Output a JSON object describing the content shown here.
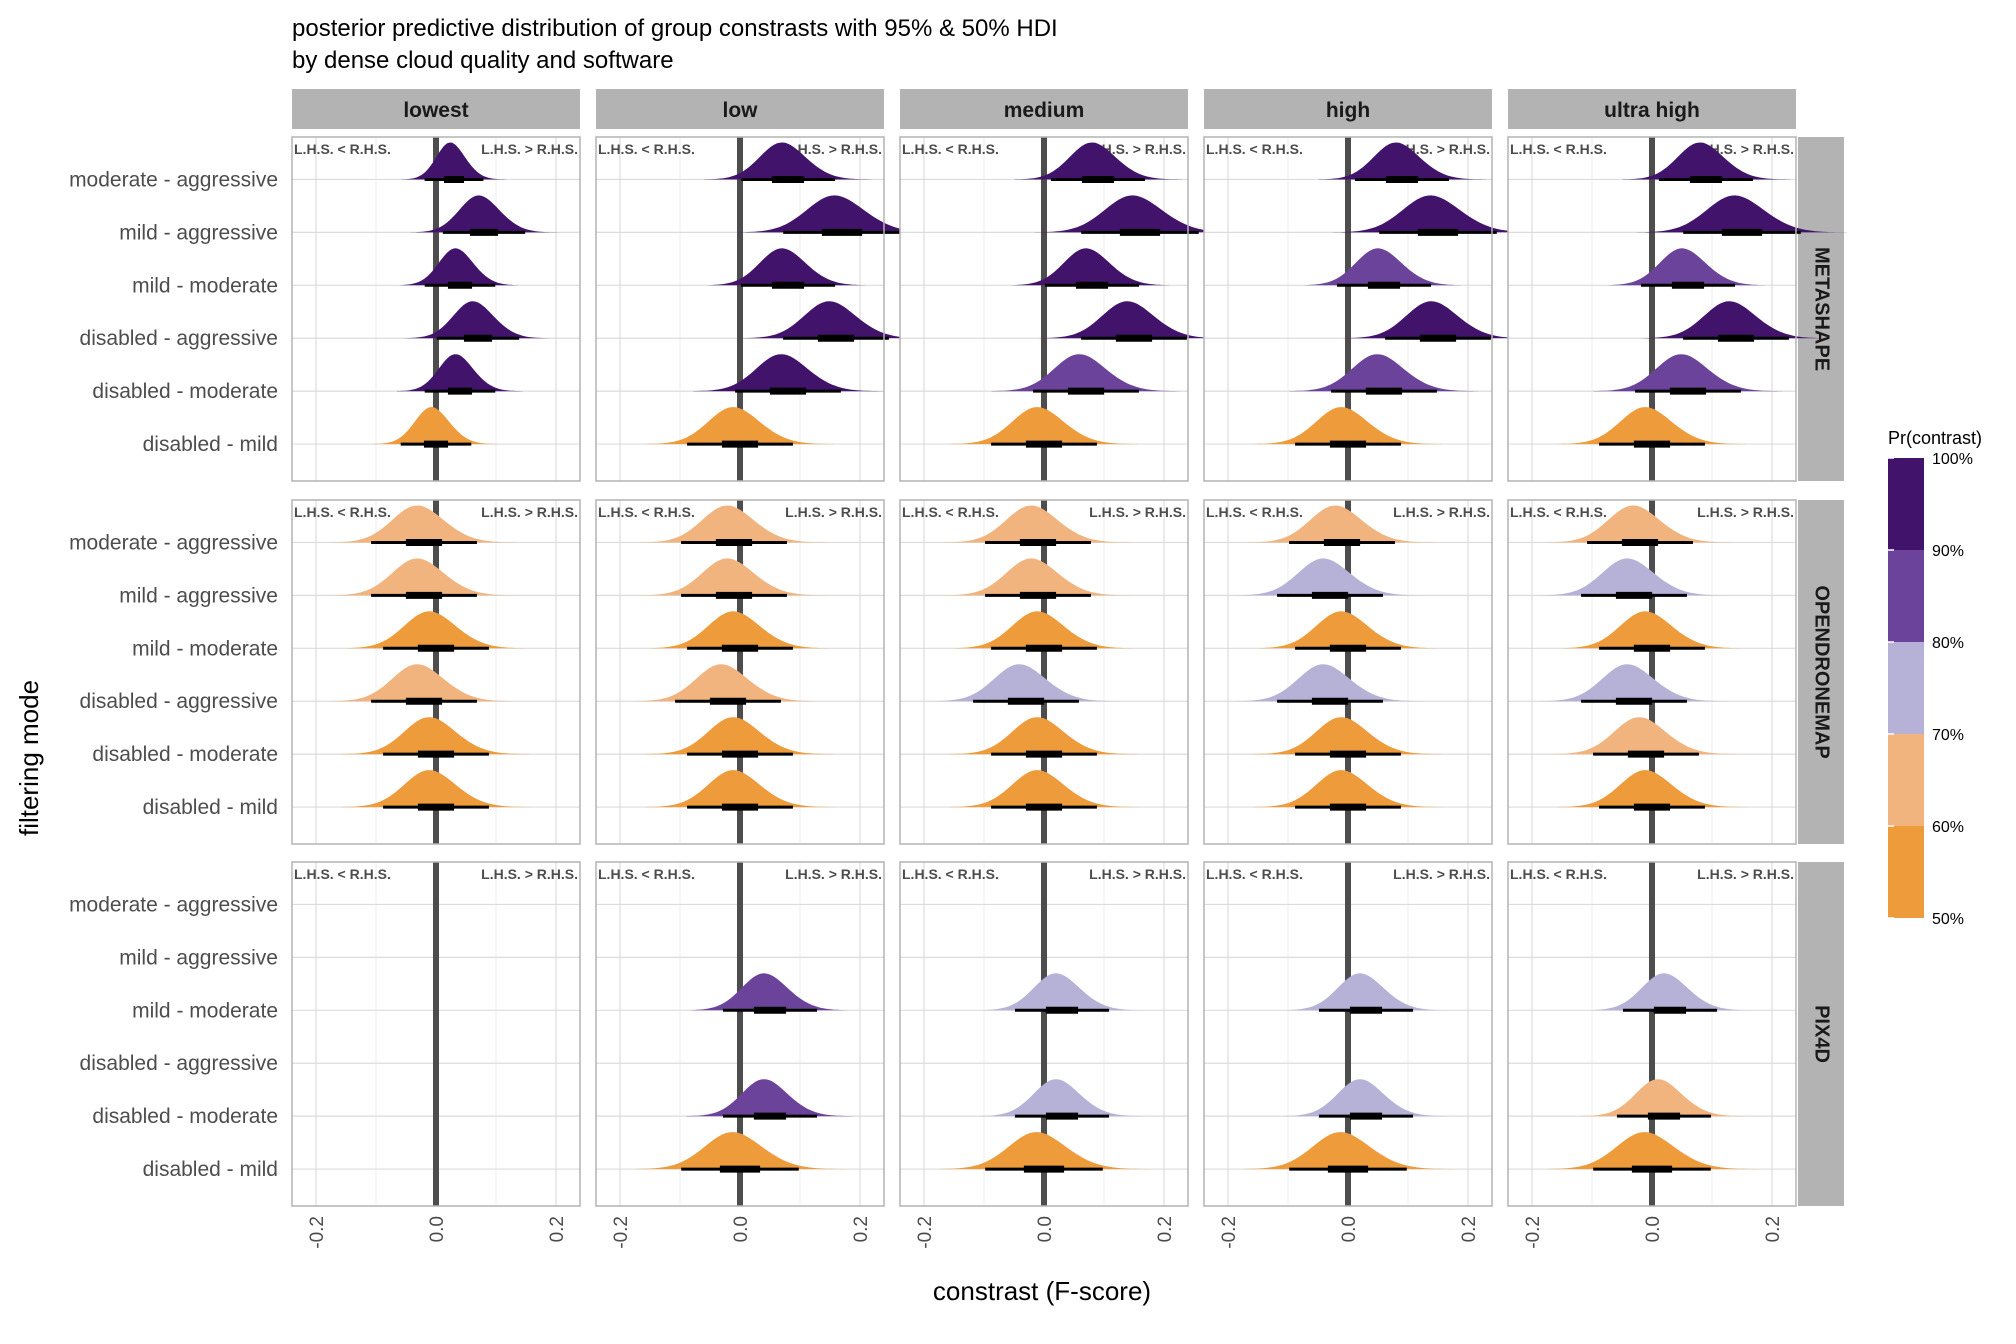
{
  "title_lines": [
    "posterior predictive distribution of group constrasts with 95% & 50% HDI",
    "by dense cloud quality and software"
  ],
  "xlabel": "constrast (F-score)",
  "ylabel": "filtering mode",
  "annotations": {
    "left": "L.H.S. < R.H.S.",
    "right": "L.H.S. > R.H.S."
  },
  "legend": {
    "title": "Pr(contrast)",
    "bins": [
      "50%",
      "60%",
      "70%",
      "80%",
      "90%",
      "100%"
    ],
    "colors": [
      "#ee9b3c",
      "#f2b47f",
      "#b6b1d7",
      "#6c439b",
      "#42136a"
    ]
  },
  "chart_data": {
    "type": "faceted ridgeline",
    "columns": [
      "lowest",
      "low",
      "medium",
      "high",
      "ultra high"
    ],
    "rows": [
      "METASHAPE",
      "OPENDRONEMAP",
      "PIX4D"
    ],
    "categories": [
      "moderate - aggressive",
      "mild - aggressive",
      "mild - moderate",
      "disabled - aggressive",
      "disabled - moderate",
      "disabled - mild"
    ],
    "x_ticks": [
      "-0.2",
      "0.0",
      "0.2"
    ],
    "xlim": [
      -0.24,
      0.24
    ],
    "reference_line": 0,
    "probability_bins": [
      0.5,
      0.6,
      0.7,
      0.8,
      0.9,
      1.0
    ],
    "cells": [
      {
        "row": "METASHAPE",
        "col": "lowest",
        "dists": [
          {
            "mean": 0.03,
            "sd": 0.025,
            "pr": 5
          },
          {
            "mean": 0.08,
            "sd": 0.035,
            "pr": 5
          },
          {
            "mean": 0.04,
            "sd": 0.03,
            "pr": 5
          },
          {
            "mean": 0.07,
            "sd": 0.035,
            "pr": 5
          },
          {
            "mean": 0.04,
            "sd": 0.03,
            "pr": 5
          },
          {
            "mean": 0.0,
            "sd": 0.03,
            "pr": 1
          }
        ]
      },
      {
        "row": "METASHAPE",
        "col": "low",
        "dists": [
          {
            "mean": 0.08,
            "sd": 0.04,
            "pr": 5
          },
          {
            "mean": 0.17,
            "sd": 0.05,
            "pr": 5
          },
          {
            "mean": 0.08,
            "sd": 0.04,
            "pr": 5
          },
          {
            "mean": 0.16,
            "sd": 0.045,
            "pr": 5
          },
          {
            "mean": 0.08,
            "sd": 0.045,
            "pr": 5
          },
          {
            "mean": 0.0,
            "sd": 0.045,
            "pr": 1
          }
        ]
      },
      {
        "row": "METASHAPE",
        "col": "medium",
        "dists": [
          {
            "mean": 0.09,
            "sd": 0.04,
            "pr": 5
          },
          {
            "mean": 0.16,
            "sd": 0.05,
            "pr": 5
          },
          {
            "mean": 0.08,
            "sd": 0.04,
            "pr": 5
          },
          {
            "mean": 0.15,
            "sd": 0.045,
            "pr": 5
          },
          {
            "mean": 0.07,
            "sd": 0.045,
            "pr": 4
          },
          {
            "mean": 0.0,
            "sd": 0.045,
            "pr": 1
          }
        ]
      },
      {
        "row": "METASHAPE",
        "col": "high",
        "dists": [
          {
            "mean": 0.09,
            "sd": 0.04,
            "pr": 5
          },
          {
            "mean": 0.15,
            "sd": 0.05,
            "pr": 5
          },
          {
            "mean": 0.06,
            "sd": 0.04,
            "pr": 4
          },
          {
            "mean": 0.15,
            "sd": 0.045,
            "pr": 5
          },
          {
            "mean": 0.06,
            "sd": 0.045,
            "pr": 4
          },
          {
            "mean": 0.0,
            "sd": 0.045,
            "pr": 1
          }
        ]
      },
      {
        "row": "METASHAPE",
        "col": "ultra high",
        "dists": [
          {
            "mean": 0.09,
            "sd": 0.04,
            "pr": 5
          },
          {
            "mean": 0.15,
            "sd": 0.05,
            "pr": 5
          },
          {
            "mean": 0.06,
            "sd": 0.04,
            "pr": 4
          },
          {
            "mean": 0.14,
            "sd": 0.045,
            "pr": 5
          },
          {
            "mean": 0.06,
            "sd": 0.045,
            "pr": 4
          },
          {
            "mean": 0.0,
            "sd": 0.045,
            "pr": 1
          }
        ]
      },
      {
        "row": "OPENDRONEMAP",
        "col": "lowest",
        "dists": [
          {
            "mean": -0.02,
            "sd": 0.045,
            "pr": 2
          },
          {
            "mean": -0.02,
            "sd": 0.045,
            "pr": 2
          },
          {
            "mean": 0.0,
            "sd": 0.045,
            "pr": 1
          },
          {
            "mean": -0.02,
            "sd": 0.045,
            "pr": 2
          },
          {
            "mean": 0.0,
            "sd": 0.045,
            "pr": 1
          },
          {
            "mean": 0.0,
            "sd": 0.045,
            "pr": 1
          }
        ]
      },
      {
        "row": "OPENDRONEMAP",
        "col": "low",
        "dists": [
          {
            "mean": -0.01,
            "sd": 0.045,
            "pr": 2
          },
          {
            "mean": -0.01,
            "sd": 0.045,
            "pr": 2
          },
          {
            "mean": 0.0,
            "sd": 0.045,
            "pr": 1
          },
          {
            "mean": -0.02,
            "sd": 0.045,
            "pr": 2
          },
          {
            "mean": 0.0,
            "sd": 0.045,
            "pr": 1
          },
          {
            "mean": 0.0,
            "sd": 0.045,
            "pr": 1
          }
        ]
      },
      {
        "row": "OPENDRONEMAP",
        "col": "medium",
        "dists": [
          {
            "mean": -0.01,
            "sd": 0.045,
            "pr": 2
          },
          {
            "mean": -0.01,
            "sd": 0.045,
            "pr": 2
          },
          {
            "mean": 0.0,
            "sd": 0.045,
            "pr": 1
          },
          {
            "mean": -0.03,
            "sd": 0.045,
            "pr": 3
          },
          {
            "mean": 0.0,
            "sd": 0.045,
            "pr": 1
          },
          {
            "mean": 0.0,
            "sd": 0.045,
            "pr": 1
          }
        ]
      },
      {
        "row": "OPENDRONEMAP",
        "col": "high",
        "dists": [
          {
            "mean": -0.01,
            "sd": 0.045,
            "pr": 2
          },
          {
            "mean": -0.03,
            "sd": 0.045,
            "pr": 3
          },
          {
            "mean": 0.0,
            "sd": 0.045,
            "pr": 1
          },
          {
            "mean": -0.03,
            "sd": 0.045,
            "pr": 3
          },
          {
            "mean": 0.0,
            "sd": 0.045,
            "pr": 1
          },
          {
            "mean": 0.0,
            "sd": 0.045,
            "pr": 1
          }
        ]
      },
      {
        "row": "OPENDRONEMAP",
        "col": "ultra high",
        "dists": [
          {
            "mean": -0.02,
            "sd": 0.045,
            "pr": 2
          },
          {
            "mean": -0.03,
            "sd": 0.045,
            "pr": 3
          },
          {
            "mean": 0.0,
            "sd": 0.045,
            "pr": 1
          },
          {
            "mean": -0.03,
            "sd": 0.045,
            "pr": 3
          },
          {
            "mean": -0.01,
            "sd": 0.045,
            "pr": 2
          },
          {
            "mean": 0.0,
            "sd": 0.045,
            "pr": 1
          }
        ]
      },
      {
        "row": "PIX4D",
        "col": "lowest",
        "dists": [
          null,
          null,
          null,
          null,
          null,
          null
        ]
      },
      {
        "row": "PIX4D",
        "col": "low",
        "dists": [
          null,
          null,
          {
            "mean": 0.05,
            "sd": 0.04,
            "pr": 4
          },
          null,
          {
            "mean": 0.05,
            "sd": 0.04,
            "pr": 4
          },
          {
            "mean": 0.0,
            "sd": 0.05,
            "pr": 1
          }
        ]
      },
      {
        "row": "PIX4D",
        "col": "medium",
        "dists": [
          null,
          null,
          {
            "mean": 0.03,
            "sd": 0.04,
            "pr": 3
          },
          null,
          {
            "mean": 0.03,
            "sd": 0.04,
            "pr": 3
          },
          {
            "mean": 0.0,
            "sd": 0.05,
            "pr": 1
          }
        ]
      },
      {
        "row": "PIX4D",
        "col": "high",
        "dists": [
          null,
          null,
          {
            "mean": 0.03,
            "sd": 0.04,
            "pr": 3
          },
          null,
          {
            "mean": 0.03,
            "sd": 0.04,
            "pr": 3
          },
          {
            "mean": 0.0,
            "sd": 0.05,
            "pr": 1
          }
        ]
      },
      {
        "row": "PIX4D",
        "col": "ultra high",
        "dists": [
          null,
          null,
          {
            "mean": 0.03,
            "sd": 0.04,
            "pr": 3
          },
          null,
          {
            "mean": 0.02,
            "sd": 0.04,
            "pr": 2
          },
          {
            "mean": 0.0,
            "sd": 0.05,
            "pr": 1
          }
        ]
      }
    ]
  }
}
